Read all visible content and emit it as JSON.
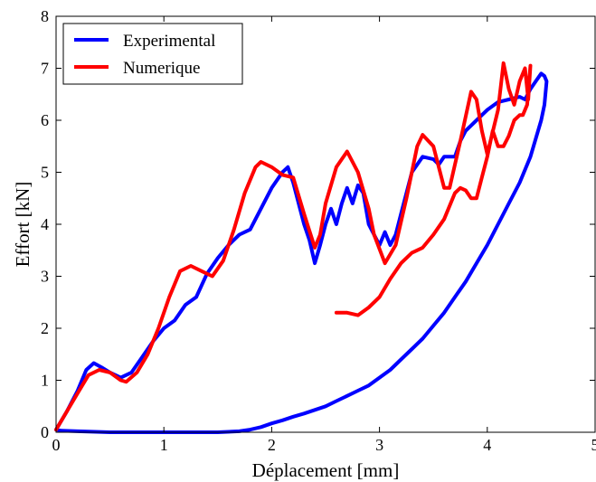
{
  "chart_data": {
    "type": "line",
    "xlabel": "Déplacement [mm]",
    "ylabel": "Effort [kN]",
    "xlim": [
      0,
      5
    ],
    "ylim": [
      0,
      8
    ],
    "xticks": [
      "0",
      "1",
      "2",
      "3",
      "4",
      "5"
    ],
    "yticks": [
      "0",
      "1",
      "2",
      "3",
      "4",
      "5",
      "6",
      "7",
      "8"
    ],
    "grid": false,
    "legend_position": "top-left",
    "series": [
      {
        "name": "Experimental",
        "color": "#0000ff",
        "points": [
          [
            0.0,
            0.05
          ],
          [
            0.1,
            0.4
          ],
          [
            0.2,
            0.8
          ],
          [
            0.28,
            1.2
          ],
          [
            0.35,
            1.33
          ],
          [
            0.42,
            1.25
          ],
          [
            0.5,
            1.15
          ],
          [
            0.6,
            1.05
          ],
          [
            0.7,
            1.15
          ],
          [
            0.8,
            1.45
          ],
          [
            0.9,
            1.75
          ],
          [
            1.0,
            2.0
          ],
          [
            1.1,
            2.15
          ],
          [
            1.2,
            2.45
          ],
          [
            1.3,
            2.6
          ],
          [
            1.4,
            3.05
          ],
          [
            1.5,
            3.35
          ],
          [
            1.6,
            3.6
          ],
          [
            1.7,
            3.8
          ],
          [
            1.8,
            3.9
          ],
          [
            1.9,
            4.3
          ],
          [
            2.0,
            4.7
          ],
          [
            2.1,
            5.0
          ],
          [
            2.15,
            5.1
          ],
          [
            2.2,
            4.8
          ],
          [
            2.3,
            4.0
          ],
          [
            2.35,
            3.7
          ],
          [
            2.4,
            3.25
          ],
          [
            2.45,
            3.6
          ],
          [
            2.5,
            4.0
          ],
          [
            2.55,
            4.3
          ],
          [
            2.6,
            4.0
          ],
          [
            2.65,
            4.4
          ],
          [
            2.7,
            4.7
          ],
          [
            2.75,
            4.4
          ],
          [
            2.8,
            4.75
          ],
          [
            2.85,
            4.6
          ],
          [
            2.9,
            4.0
          ],
          [
            2.95,
            3.8
          ],
          [
            3.0,
            3.6
          ],
          [
            3.05,
            3.85
          ],
          [
            3.1,
            3.6
          ],
          [
            3.15,
            3.8
          ],
          [
            3.2,
            4.2
          ],
          [
            3.3,
            5.0
          ],
          [
            3.4,
            5.3
          ],
          [
            3.5,
            5.25
          ],
          [
            3.55,
            5.15
          ],
          [
            3.6,
            5.3
          ],
          [
            3.7,
            5.3
          ],
          [
            3.75,
            5.6
          ],
          [
            3.8,
            5.8
          ],
          [
            3.85,
            5.9
          ],
          [
            3.9,
            6.0
          ],
          [
            4.0,
            6.2
          ],
          [
            4.1,
            6.35
          ],
          [
            4.2,
            6.4
          ],
          [
            4.3,
            6.45
          ],
          [
            4.35,
            6.4
          ],
          [
            4.4,
            6.6
          ],
          [
            4.45,
            6.75
          ],
          [
            4.5,
            6.9
          ],
          [
            4.53,
            6.85
          ],
          [
            4.55,
            6.75
          ],
          [
            4.53,
            6.3
          ],
          [
            4.5,
            6.0
          ],
          [
            4.4,
            5.3
          ],
          [
            4.3,
            4.8
          ],
          [
            4.2,
            4.4
          ],
          [
            4.1,
            4.0
          ],
          [
            4.0,
            3.6
          ],
          [
            3.9,
            3.25
          ],
          [
            3.8,
            2.9
          ],
          [
            3.7,
            2.6
          ],
          [
            3.6,
            2.3
          ],
          [
            3.5,
            2.05
          ],
          [
            3.4,
            1.8
          ],
          [
            3.3,
            1.6
          ],
          [
            3.2,
            1.4
          ],
          [
            3.1,
            1.2
          ],
          [
            3.0,
            1.05
          ],
          [
            2.9,
            0.9
          ],
          [
            2.8,
            0.8
          ],
          [
            2.7,
            0.7
          ],
          [
            2.6,
            0.6
          ],
          [
            2.5,
            0.5
          ],
          [
            2.4,
            0.43
          ],
          [
            2.3,
            0.36
          ],
          [
            2.2,
            0.3
          ],
          [
            2.1,
            0.23
          ],
          [
            2.0,
            0.17
          ],
          [
            1.9,
            0.1
          ],
          [
            1.8,
            0.05
          ],
          [
            1.7,
            0.02
          ],
          [
            1.5,
            0.0
          ],
          [
            1.0,
            0.0
          ],
          [
            0.5,
            0.0
          ],
          [
            0.2,
            0.02
          ],
          [
            0.05,
            0.03
          ],
          [
            0.0,
            0.05
          ]
        ]
      },
      {
        "name": "Numerique",
        "color": "#ff0000",
        "points": [
          [
            0.0,
            0.05
          ],
          [
            0.1,
            0.4
          ],
          [
            0.2,
            0.75
          ],
          [
            0.3,
            1.1
          ],
          [
            0.4,
            1.2
          ],
          [
            0.5,
            1.15
          ],
          [
            0.6,
            1.0
          ],
          [
            0.65,
            0.97
          ],
          [
            0.75,
            1.15
          ],
          [
            0.85,
            1.5
          ],
          [
            0.95,
            2.0
          ],
          [
            1.05,
            2.6
          ],
          [
            1.15,
            3.1
          ],
          [
            1.25,
            3.2
          ],
          [
            1.35,
            3.1
          ],
          [
            1.45,
            3.0
          ],
          [
            1.55,
            3.3
          ],
          [
            1.65,
            3.9
          ],
          [
            1.75,
            4.6
          ],
          [
            1.85,
            5.1
          ],
          [
            1.9,
            5.2
          ],
          [
            2.0,
            5.1
          ],
          [
            2.1,
            4.95
          ],
          [
            2.2,
            4.9
          ],
          [
            2.3,
            4.2
          ],
          [
            2.4,
            3.55
          ],
          [
            2.45,
            3.8
          ],
          [
            2.5,
            4.4
          ],
          [
            2.6,
            5.1
          ],
          [
            2.7,
            5.4
          ],
          [
            2.8,
            5.0
          ],
          [
            2.9,
            4.3
          ],
          [
            2.95,
            3.8
          ],
          [
            3.05,
            3.25
          ],
          [
            3.15,
            3.6
          ],
          [
            3.25,
            4.5
          ],
          [
            3.35,
            5.5
          ],
          [
            3.4,
            5.72
          ],
          [
            3.5,
            5.5
          ],
          [
            3.6,
            4.7
          ],
          [
            3.65,
            4.7
          ],
          [
            3.75,
            5.6
          ],
          [
            3.85,
            6.55
          ],
          [
            3.9,
            6.4
          ],
          [
            3.95,
            5.8
          ],
          [
            4.0,
            5.35
          ],
          [
            4.1,
            6.2
          ],
          [
            4.15,
            7.1
          ],
          [
            4.2,
            6.6
          ],
          [
            4.25,
            6.3
          ],
          [
            4.3,
            6.75
          ],
          [
            4.35,
            7.0
          ],
          [
            4.38,
            6.4
          ],
          [
            4.4,
            7.05
          ],
          [
            4.37,
            6.3
          ],
          [
            4.33,
            6.1
          ],
          [
            4.3,
            6.1
          ],
          [
            4.25,
            6.0
          ],
          [
            4.2,
            5.7
          ],
          [
            4.15,
            5.5
          ],
          [
            4.1,
            5.5
          ],
          [
            4.05,
            5.8
          ],
          [
            4.0,
            5.3
          ],
          [
            3.95,
            4.9
          ],
          [
            3.9,
            4.5
          ],
          [
            3.85,
            4.5
          ],
          [
            3.8,
            4.65
          ],
          [
            3.75,
            4.7
          ],
          [
            3.7,
            4.6
          ],
          [
            3.6,
            4.1
          ],
          [
            3.5,
            3.8
          ],
          [
            3.4,
            3.55
          ],
          [
            3.3,
            3.45
          ],
          [
            3.2,
            3.25
          ],
          [
            3.1,
            2.95
          ],
          [
            3.0,
            2.6
          ],
          [
            2.9,
            2.4
          ],
          [
            2.8,
            2.25
          ],
          [
            2.7,
            2.3
          ],
          [
            2.6,
            2.3
          ]
        ]
      }
    ]
  }
}
